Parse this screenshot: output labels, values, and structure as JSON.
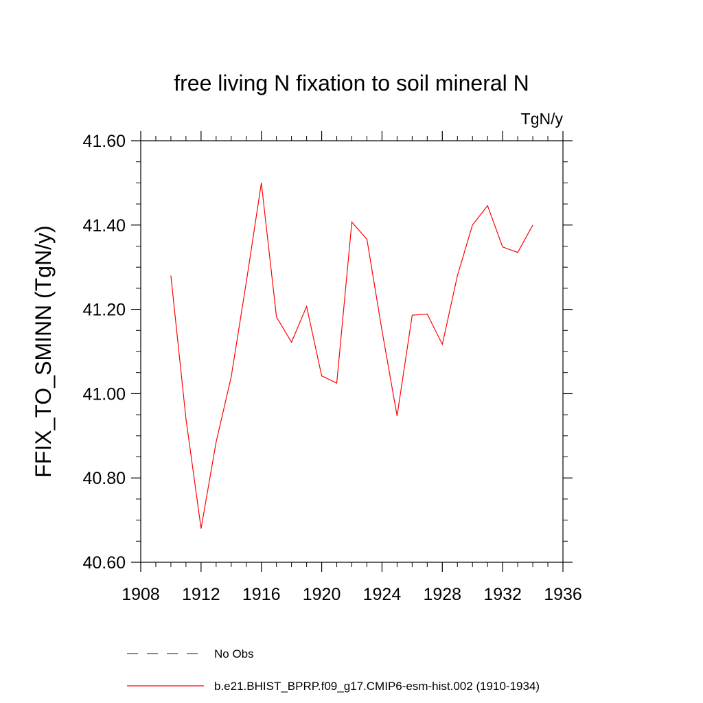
{
  "chart_data": {
    "type": "line",
    "title": "free living N fixation to soil mineral N",
    "units_label": "TgN/y",
    "ylabel": "FFIX_TO_SMINN  (TgN/y)",
    "xlabel": "",
    "xlim": [
      1908,
      1936
    ],
    "ylim": [
      40.6,
      41.6
    ],
    "x_ticks": [
      1908,
      1912,
      1916,
      1920,
      1924,
      1928,
      1932,
      1936
    ],
    "x_tick_labels": [
      "1908",
      "1912",
      "1916",
      "1920",
      "1924",
      "1928",
      "1932",
      "1936"
    ],
    "y_ticks": [
      40.6,
      40.8,
      41.0,
      41.2,
      41.4,
      41.6
    ],
    "y_tick_labels": [
      "40.60",
      "40.80",
      "41.00",
      "41.20",
      "41.40",
      "41.60"
    ],
    "grid": false,
    "legend_position": "bottom",
    "series": [
      {
        "name": "b.e21.BHIST_BPRP.f09_g17.CMIP6-esm-hist.002 (1910-1934)",
        "color": "#ff0000",
        "dash": "solid",
        "x": [
          1910,
          1911,
          1912,
          1913,
          1914,
          1915,
          1916,
          1917,
          1918,
          1919,
          1920,
          1921,
          1922,
          1923,
          1924,
          1925,
          1926,
          1927,
          1928,
          1929,
          1930,
          1931,
          1932,
          1933,
          1934
        ],
        "values": [
          41.28,
          40.94,
          40.68,
          40.885,
          41.04,
          41.265,
          41.5,
          41.182,
          41.122,
          41.207,
          41.042,
          41.025,
          41.407,
          41.366,
          41.15,
          40.947,
          41.186,
          41.189,
          41.117,
          41.28,
          41.4,
          41.446,
          41.348,
          41.335,
          41.4
        ]
      }
    ],
    "legend": [
      {
        "label": "No Obs",
        "color": "#3333aa",
        "dash": "dashed"
      },
      {
        "label": "b.e21.BHIST_BPRP.f09_g17.CMIP6-esm-hist.002 (1910-1934)",
        "color": "#ff0000",
        "dash": "solid"
      }
    ]
  }
}
